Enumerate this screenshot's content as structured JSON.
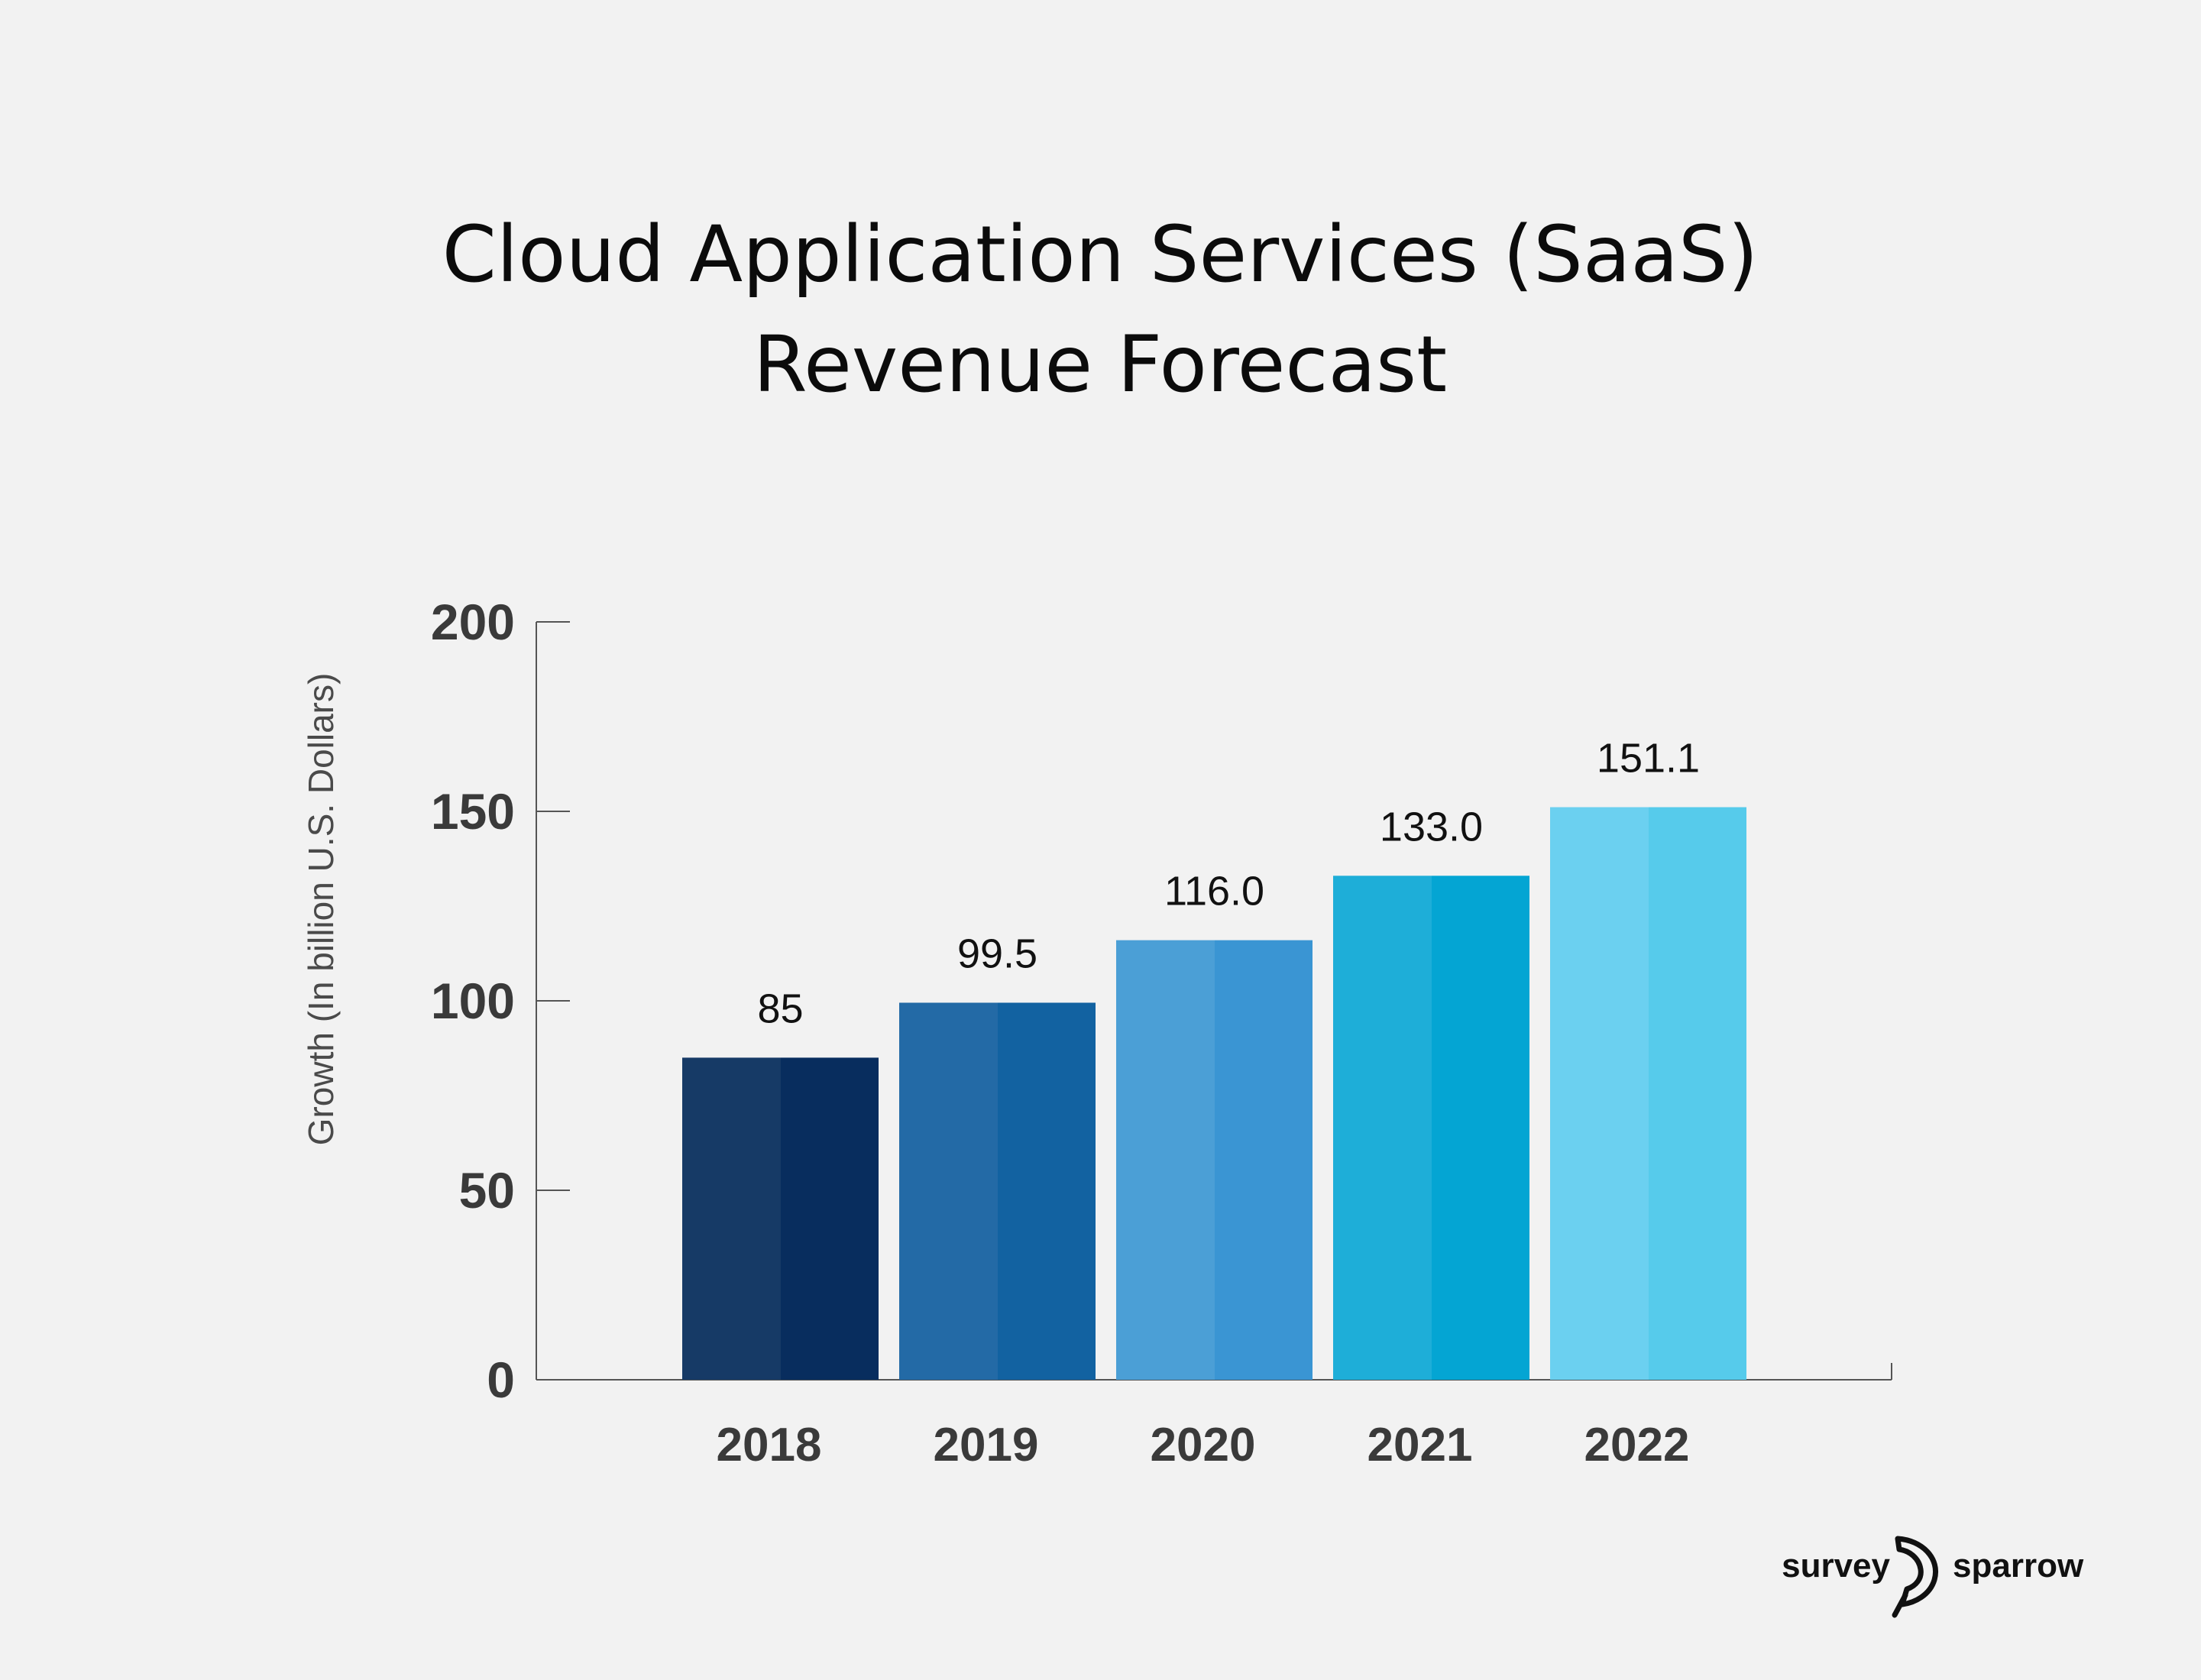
{
  "chart_data": {
    "type": "bar",
    "title_lines": [
      "Cloud Application Services (SaaS)",
      "Revenue Forecast"
    ],
    "ylabel": "Growth  (In billion U.S. Dollars)",
    "xlabel": "",
    "categories": [
      "2018",
      "2019",
      "2020",
      "2021",
      "2022"
    ],
    "values": [
      85,
      99.5,
      116.0,
      133.0,
      151.1
    ],
    "value_labels": [
      "85",
      "99.5",
      "116.0",
      "133.0",
      "151.1"
    ],
    "ylim": [
      0,
      200
    ],
    "yticks": [
      "0",
      "50",
      "100",
      "150",
      "200"
    ],
    "grid": false,
    "bar_colors": [
      {
        "left": "#163a66",
        "right": "#082d5e"
      },
      {
        "left": "#236aa6",
        "right": "#1262a1"
      },
      {
        "left": "#4b9fd6",
        "right": "#3a95d3"
      },
      {
        "left": "#1eaed8",
        "right": "#04a5d3"
      },
      {
        "left": "#6bd0f0",
        "right": "#56cbeb"
      }
    ],
    "axis_color": "#555555"
  },
  "brand": {
    "left_text": "survey",
    "right_text": "sparrow",
    "logo_icon": "sparrow-logo-icon"
  }
}
